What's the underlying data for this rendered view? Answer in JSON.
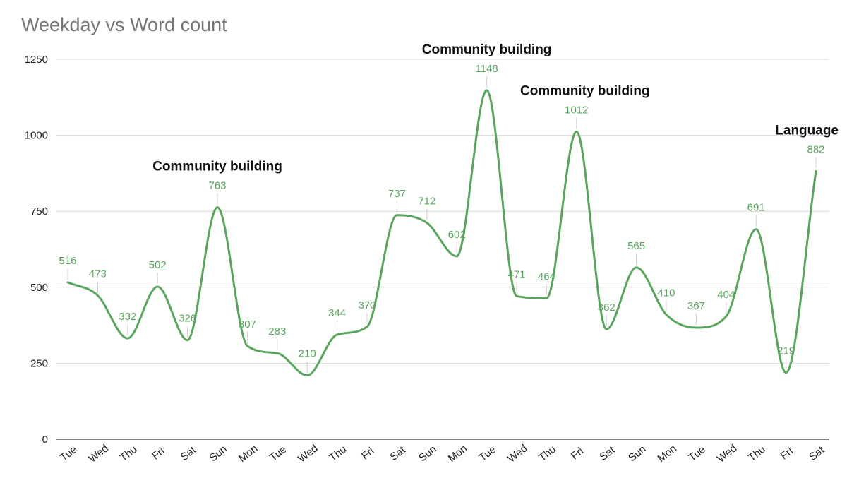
{
  "chart_data": {
    "type": "line",
    "title": "Weekday vs Word count",
    "xlabel": "",
    "ylabel": "",
    "ylim": [
      0,
      1250
    ],
    "yticks": [
      0,
      250,
      500,
      750,
      1000,
      1250
    ],
    "grid": true,
    "legend": "none",
    "smooth": true,
    "series_color": "#5aa55e",
    "categories": [
      "Tue",
      "Wed",
      "Thu",
      "Fri",
      "Sat",
      "Sun",
      "Mon",
      "Tue",
      "Wed",
      "Thu",
      "Fri",
      "Sat",
      "Sun",
      "Mon",
      "Tue",
      "Wed",
      "Thu",
      "Fri",
      "Sat",
      "Sun",
      "Mon",
      "Tue",
      "Wed",
      "Thu",
      "Fri",
      "Sat"
    ],
    "series": [
      {
        "name": "Word count",
        "values": [
          516,
          473,
          332,
          502,
          326,
          763,
          307,
          283,
          210,
          344,
          370,
          737,
          712,
          602,
          1148,
          471,
          464,
          1012,
          362,
          565,
          410,
          367,
          404,
          691,
          219,
          882
        ]
      }
    ],
    "annotations": [
      {
        "text": "Community building",
        "index": 5
      },
      {
        "text": "Community building",
        "index": 14
      },
      {
        "text": "Community building",
        "index": 17
      },
      {
        "text": "Language",
        "index": 25
      }
    ]
  }
}
